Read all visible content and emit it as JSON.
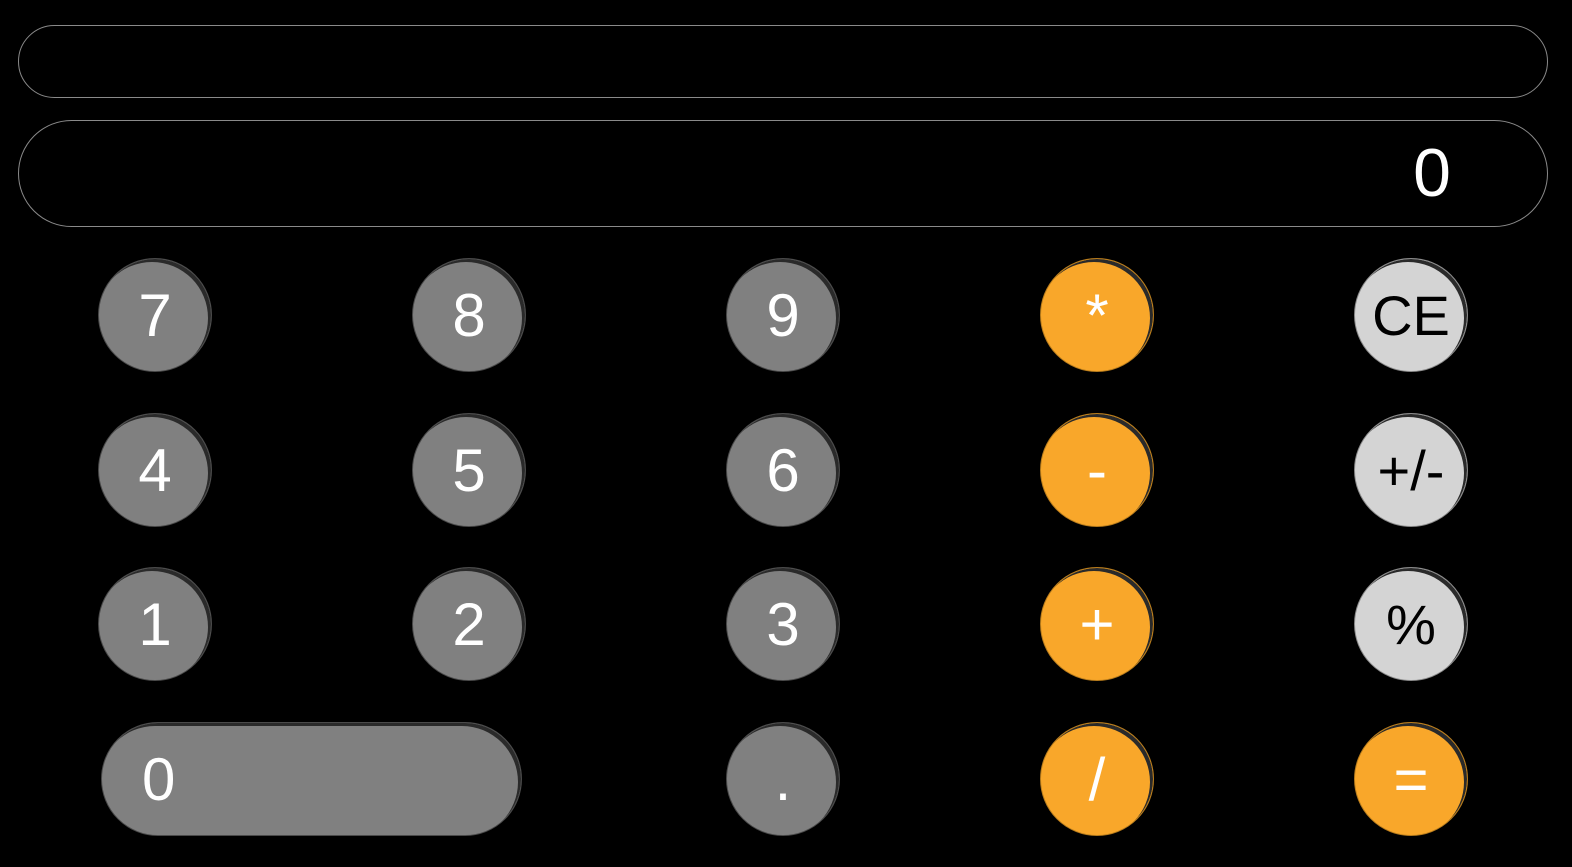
{
  "display": {
    "expression": "",
    "result": "0"
  },
  "keys": {
    "seven": "7",
    "eight": "8",
    "nine": "9",
    "multiply": "*",
    "clear_entry": "CE",
    "four": "4",
    "five": "5",
    "six": "6",
    "subtract": "-",
    "negate": "+/-",
    "one": "1",
    "two": "2",
    "three": "3",
    "add": "+",
    "percent": "%",
    "zero": "0",
    "decimal": ".",
    "divide": "/",
    "equals": "="
  },
  "colors": {
    "background": "#000000",
    "number_key": "#808080",
    "operator_key": "#f9a72a",
    "function_key": "#d4d4d4",
    "display_border": "#8a8a8a"
  }
}
